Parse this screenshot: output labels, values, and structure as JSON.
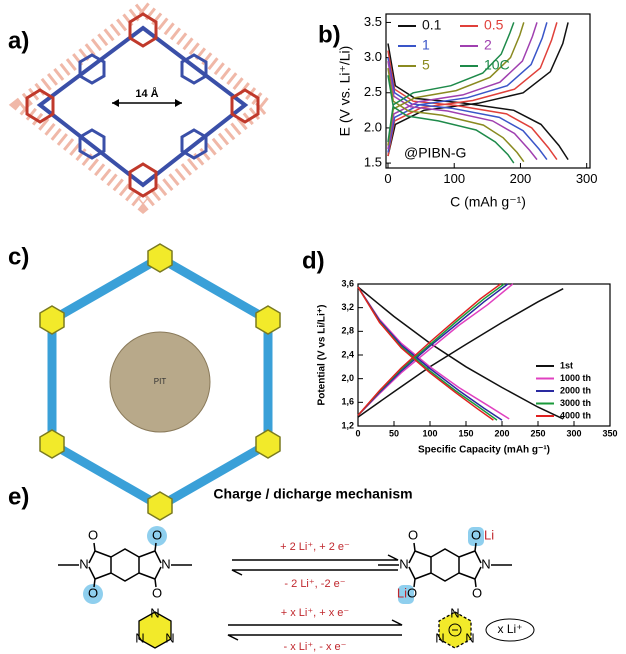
{
  "panel_labels": [
    "a)",
    "b)",
    "c)",
    "d)",
    "e)"
  ],
  "panel_a": {
    "pore_label": "14 Å"
  },
  "panel_c": {
    "center_label": "PIT"
  },
  "chart_data": [
    {
      "type": "line",
      "xlabel": "C (mAh g⁻¹)",
      "ylabel": "E (V vs. Li⁺/Li)",
      "annotation": "@PIBN-G",
      "xlim": [
        -3,
        305
      ],
      "ylim": [
        1.43,
        3.62
      ],
      "xticks": [
        0,
        100,
        200,
        300
      ],
      "yticks": [
        {
          "value": 1.5,
          "label": "1.5"
        },
        {
          "value": 2,
          "label": "2.0"
        },
        {
          "value": 2.5,
          "label": "2.5"
        },
        {
          "value": 3,
          "label": "3.0"
        },
        {
          "value": 3.5,
          "label": "3.5"
        }
      ],
      "legend": "upper left",
      "series": [
        {
          "name": "0.1",
          "color": "#111111",
          "x": [
            0,
            11,
            41,
            109,
            190,
            231,
            258,
            272,
            null,
            0,
            11,
            54,
            136,
            204,
            245,
            264,
            272
          ],
          "values": [
            3.2,
            2.6,
            2.42,
            2.36,
            2.25,
            2.05,
            1.75,
            1.55,
            null,
            1.6,
            2.05,
            2.25,
            2.35,
            2.5,
            2.8,
            3.2,
            3.5
          ]
        },
        {
          "name": "0.5",
          "color": "#e0403a",
          "x": [
            0,
            10,
            38,
            102,
            179,
            217,
            242,
            255,
            null,
            0,
            10,
            51,
            128,
            191,
            230,
            247,
            255
          ],
          "values": [
            3.1,
            2.55,
            2.38,
            2.32,
            2.2,
            2.0,
            1.72,
            1.55,
            null,
            1.6,
            2.1,
            2.29,
            2.39,
            2.55,
            2.85,
            3.25,
            3.5
          ]
        },
        {
          "name": "1",
          "color": "#3a55c8",
          "x": [
            0,
            10,
            36,
            96,
            168,
            204,
            228,
            240,
            null,
            0,
            10,
            48,
            120,
            180,
            216,
            233,
            240
          ],
          "values": [
            3.0,
            2.5,
            2.34,
            2.28,
            2.15,
            1.96,
            1.7,
            1.55,
            null,
            1.65,
            2.15,
            2.33,
            2.43,
            2.6,
            2.9,
            3.28,
            3.5
          ]
        },
        {
          "name": "2",
          "color": "#a040b0",
          "x": [
            0,
            9,
            34,
            90,
            158,
            191,
            214,
            225,
            null,
            0,
            9,
            45,
            113,
            169,
            203,
            218,
            225
          ],
          "values": [
            2.95,
            2.45,
            2.3,
            2.24,
            2.1,
            1.92,
            1.68,
            1.55,
            null,
            1.7,
            2.2,
            2.37,
            2.47,
            2.65,
            2.95,
            3.3,
            3.5
          ]
        },
        {
          "name": "5",
          "color": "#8a8a20",
          "x": [
            0,
            8,
            31,
            82,
            144,
            174,
            195,
            205,
            null,
            0,
            8,
            41,
            103,
            154,
            185,
            199,
            205
          ],
          "values": [
            2.85,
            2.38,
            2.24,
            2.18,
            2.04,
            1.86,
            1.65,
            1.52,
            null,
            1.75,
            2.27,
            2.43,
            2.53,
            2.72,
            3.0,
            3.32,
            3.5
          ]
        },
        {
          "name": "10C",
          "color": "#1e8a4a",
          "x": [
            0,
            8,
            29,
            76,
            133,
            162,
            181,
            190,
            null,
            0,
            8,
            38,
            95,
            143,
            171,
            184,
            190
          ],
          "values": [
            2.75,
            2.3,
            2.17,
            2.1,
            1.97,
            1.8,
            1.62,
            1.5,
            null,
            1.8,
            2.33,
            2.5,
            2.6,
            2.78,
            3.05,
            3.35,
            3.5
          ]
        }
      ]
    },
    {
      "type": "line",
      "xlabel": "Specific Capacity (mAh g⁻¹)",
      "ylabel": "Potential (V vs Li/Li⁺)",
      "xlim": [
        0,
        350
      ],
      "ylim": [
        1.2,
        3.6
      ],
      "xticks": [
        0,
        50,
        100,
        150,
        200,
        250,
        300,
        350
      ],
      "yticks": [
        {
          "value": 1.2,
          "label": "1,2"
        },
        {
          "value": 1.6,
          "label": "1,6"
        },
        {
          "value": 2,
          "label": "2,0"
        },
        {
          "value": 2.4,
          "label": "2,4"
        },
        {
          "value": 2.8,
          "label": "2,8"
        },
        {
          "value": 3.2,
          "label": "3,2"
        },
        {
          "value": 3.6,
          "label": "3,6"
        }
      ],
      "legend": "lower right",
      "series": [
        {
          "name": "1st",
          "color": "#111111",
          "x": [
            0,
            50,
            100,
            150,
            200,
            250,
            285,
            null,
            0,
            50,
            100,
            150,
            200,
            250,
            285
          ],
          "values": [
            3.55,
            3.05,
            2.6,
            2.2,
            1.85,
            1.52,
            1.32,
            null,
            1.35,
            1.78,
            2.2,
            2.58,
            2.95,
            3.3,
            3.52
          ]
        },
        {
          "name": "1000 th",
          "color": "#e040c0",
          "x": [
            0,
            30,
            60,
            100,
            140,
            180,
            210,
            null,
            0,
            30,
            60,
            100,
            140,
            180,
            215
          ],
          "values": [
            3.55,
            3.0,
            2.6,
            2.2,
            1.85,
            1.55,
            1.32,
            null,
            1.38,
            1.75,
            2.1,
            2.5,
            2.9,
            3.25,
            3.6
          ]
        },
        {
          "name": "2000 th",
          "color": "#2a2aa0",
          "x": [
            0,
            30,
            60,
            100,
            140,
            175,
            200,
            null,
            0,
            30,
            60,
            100,
            140,
            175,
            208
          ],
          "values": [
            3.55,
            2.98,
            2.57,
            2.17,
            1.8,
            1.5,
            1.3,
            null,
            1.38,
            1.77,
            2.13,
            2.55,
            2.95,
            3.3,
            3.6
          ]
        },
        {
          "name": "3000 th",
          "color": "#1a9a3a",
          "x": [
            0,
            30,
            60,
            100,
            135,
            170,
            193,
            null,
            0,
            30,
            60,
            100,
            140,
            175,
            203
          ],
          "values": [
            3.55,
            2.96,
            2.54,
            2.13,
            1.8,
            1.5,
            1.3,
            null,
            1.38,
            1.79,
            2.16,
            2.58,
            3.0,
            3.35,
            3.6
          ]
        },
        {
          "name": "4000 th",
          "color": "#e02020",
          "x": [
            0,
            30,
            60,
            100,
            135,
            165,
            188,
            null,
            0,
            30,
            60,
            100,
            140,
            170,
            198
          ],
          "values": [
            3.55,
            2.95,
            2.52,
            2.1,
            1.77,
            1.5,
            1.3,
            null,
            1.38,
            1.8,
            2.18,
            2.62,
            3.04,
            3.35,
            3.6
          ]
        }
      ]
    }
  ],
  "mechanism": {
    "title": "Charge / dicharge mechanism",
    "reaction_1": {
      "forward": "+ 2 Li⁺, + 2 e⁻",
      "reverse": "- 2 Li⁺, -2 e⁻",
      "reactant_atoms": [
        "O",
        "O",
        "O",
        "O",
        "N",
        "N"
      ],
      "product_atoms": [
        "O",
        "Li",
        "Li",
        "O",
        "O",
        "O",
        "N",
        "N"
      ]
    },
    "reaction_2": {
      "forward": "+ x Li⁺, + x e⁻",
      "reverse": "- x Li⁺, - x e⁻",
      "reactant_atoms": [
        "N",
        "N",
        "N"
      ],
      "product_atoms": [
        "N",
        "N",
        "N"
      ],
      "counter_ion": "x Li⁺"
    }
  }
}
